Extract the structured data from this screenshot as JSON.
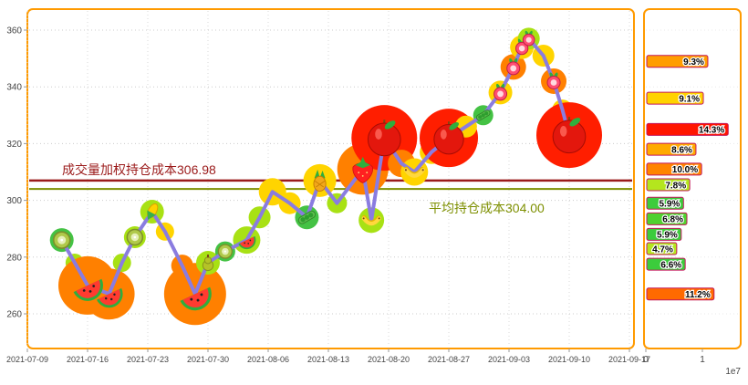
{
  "chart_data": {
    "type": "line",
    "title": "",
    "description": "Stock price line with fruit markers, volume-weighted bubbles, and chip (holding cost) distribution side panel",
    "main": {
      "x_tick_labels": [
        "2021-07-09",
        "2021-07-16",
        "2021-07-23",
        "2021-07-30",
        "2021-08-06",
        "2021-08-13",
        "2021-08-20",
        "2021-08-27",
        "2021-09-03",
        "2021-09-10",
        "2021-09-17"
      ],
      "x_tick_days": [
        0,
        7,
        14,
        21,
        28,
        35,
        42,
        49,
        56,
        63,
        70
      ],
      "y_ticks": [
        260,
        280,
        300,
        320,
        340,
        360
      ],
      "ylim": [
        248,
        368
      ],
      "grid": true,
      "line_color": "#8a7ce0",
      "panel_border_color": "#ff9a00",
      "hlines": [
        {
          "label": "成交量加权持仓成本306.98",
          "value": 306.98,
          "color": "#9b1b1b"
        },
        {
          "label": "平均持仓成本304.00",
          "value": 304.0,
          "color": "#7d8f00"
        }
      ],
      "points": [
        {
          "day": 4,
          "price": 286,
          "marker": "kiwi",
          "ms": 18,
          "bubble": {
            "r": 13,
            "color": "#44c244"
          }
        },
        {
          "day": 5.5,
          "price": 278,
          "bubble": {
            "r": 10,
            "color": "#a8e114"
          }
        },
        {
          "day": 7,
          "price": 270,
          "marker": "watermelon",
          "ms": 34,
          "bubble": {
            "r": 32,
            "color": "#ff8000"
          }
        },
        {
          "day": 9.5,
          "price": 267,
          "marker": "watermelon",
          "ms": 30,
          "bubble": {
            "r": 28,
            "color": "#ff8000"
          }
        },
        {
          "day": 11,
          "price": 278,
          "bubble": {
            "r": 10,
            "color": "#a8e114"
          }
        },
        {
          "day": 12.5,
          "price": 287,
          "marker": "kiwi",
          "ms": 17,
          "bubble": {
            "r": 12,
            "color": "#a8e114"
          }
        },
        {
          "day": 14.5,
          "price": 296,
          "marker": "corn",
          "ms": 20,
          "bubble": {
            "r": 13,
            "color": "#a8e114"
          }
        },
        {
          "day": 16,
          "price": 289,
          "bubble": {
            "r": 10,
            "color": "#ffd400"
          }
        },
        {
          "day": 18,
          "price": 277,
          "bubble": {
            "r": 12,
            "color": "#ff8000"
          }
        },
        {
          "day": 19.5,
          "price": 267,
          "marker": "watermelon",
          "ms": 36,
          "bubble": {
            "r": 34,
            "color": "#ff8000"
          }
        },
        {
          "day": 21,
          "price": 278,
          "marker": "pear",
          "ms": 19,
          "bubble": {
            "r": 13,
            "color": "#a8e114"
          }
        },
        {
          "day": 23,
          "price": 282,
          "marker": "kiwi",
          "ms": 15,
          "bubble": {
            "r": 11,
            "color": "#44c244"
          }
        },
        {
          "day": 25.5,
          "price": 286,
          "marker": "watermelon",
          "ms": 20,
          "bubble": {
            "r": 15,
            "color": "#a8e114"
          }
        },
        {
          "day": 27,
          "price": 294,
          "bubble": {
            "r": 12,
            "color": "#a8e114"
          }
        },
        {
          "day": 28.5,
          "price": 303,
          "bubble": {
            "r": 15,
            "color": "#ffd400"
          }
        },
        {
          "day": 30.5,
          "price": 299,
          "bubble": {
            "r": 12,
            "color": "#ffd400"
          }
        },
        {
          "day": 32.5,
          "price": 294,
          "marker": "peas",
          "ms": 20,
          "bubble": {
            "r": 13,
            "color": "#44c244"
          }
        },
        {
          "day": 34,
          "price": 307,
          "marker": "pineapple",
          "ms": 24,
          "bubble": {
            "r": 18,
            "color": "#ffd400"
          }
        },
        {
          "day": 36,
          "price": 299,
          "bubble": {
            "r": 11,
            "color": "#a8e114"
          }
        },
        {
          "day": 39,
          "price": 311,
          "marker": "strawberry",
          "ms": 30,
          "bubble": {
            "r": 28,
            "color": "#ff8000"
          }
        },
        {
          "day": 40,
          "price": 293,
          "marker": "banana",
          "ms": 20,
          "bubble": {
            "r": 14,
            "color": "#a8e114"
          }
        },
        {
          "day": 41.5,
          "price": 322,
          "marker": "apple",
          "ms": 42,
          "bubble": {
            "r": 36,
            "color": "#ff1e00"
          }
        },
        {
          "day": 43.5,
          "price": 313,
          "bubble": {
            "r": 15,
            "color": "#ff8000"
          }
        },
        {
          "day": 45,
          "price": 310,
          "marker": "banana",
          "ms": 22,
          "bubble": {
            "r": 15,
            "color": "#ffd400"
          }
        },
        {
          "day": 47,
          "price": 317,
          "bubble": {
            "r": 13,
            "color": "#ffd400"
          }
        },
        {
          "day": 49,
          "price": 322,
          "marker": "apple",
          "ms": 38,
          "bubble": {
            "r": 32,
            "color": "#ff1e00"
          }
        },
        {
          "day": 51,
          "price": 326,
          "bubble": {
            "r": 12,
            "color": "#ffd400"
          }
        },
        {
          "day": 53,
          "price": 330,
          "marker": "peas",
          "ms": 16,
          "bubble": {
            "r": 11,
            "color": "#44c244"
          }
        },
        {
          "day": 55,
          "price": 338,
          "marker": "radish",
          "ms": 20,
          "bubble": {
            "r": 13,
            "color": "#ffd400"
          }
        },
        {
          "day": 56.5,
          "price": 347,
          "marker": "radish",
          "ms": 20,
          "bubble": {
            "r": 14,
            "color": "#ff8000"
          }
        },
        {
          "day": 57.5,
          "price": 354,
          "marker": "radish",
          "ms": 19,
          "bubble": {
            "r": 13,
            "color": "#ffd400"
          }
        },
        {
          "day": 58.3,
          "price": 357,
          "marker": "radish",
          "ms": 18,
          "bubble": {
            "r": 12,
            "color": "#a8e114"
          }
        },
        {
          "day": 60,
          "price": 351,
          "bubble": {
            "r": 12,
            "color": "#ffd400"
          }
        },
        {
          "day": 61.2,
          "price": 342,
          "marker": "radish",
          "ms": 20,
          "bubble": {
            "r": 14,
            "color": "#ff8000"
          }
        },
        {
          "day": 62.2,
          "price": 332,
          "bubble": {
            "r": 11,
            "color": "#ffd400"
          }
        },
        {
          "day": 63,
          "price": 323,
          "marker": "apple",
          "ms": 42,
          "bubble": {
            "r": 36,
            "color": "#ff1e00"
          }
        }
      ]
    },
    "volume_panel": {
      "x_tick_labels": [
        "0",
        "1"
      ],
      "scale_label": "1e7",
      "panel_border_color": "#ff9a00",
      "bars": [
        {
          "price": 349,
          "pct": "9.3%",
          "value": 1.08,
          "color": "#ff9d00"
        },
        {
          "price": 336,
          "pct": "9.1%",
          "value": 1.0,
          "color": "#ffd300"
        },
        {
          "price": 325,
          "pct": "14.3%",
          "value": 1.44,
          "color": "#ff1500"
        },
        {
          "price": 318,
          "pct": "8.6%",
          "value": 0.87,
          "color": "#ffaa00"
        },
        {
          "price": 311,
          "pct": "10.0%",
          "value": 0.97,
          "color": "#ff8400"
        },
        {
          "price": 305.5,
          "pct": "7.8%",
          "value": 0.76,
          "color": "#b4e61e"
        },
        {
          "price": 299,
          "pct": "5.9%",
          "value": 0.65,
          "color": "#3ccc3c"
        },
        {
          "price": 293.5,
          "pct": "6.8%",
          "value": 0.71,
          "color": "#4fd12f"
        },
        {
          "price": 288,
          "pct": "5.9%",
          "value": 0.61,
          "color": "#3ccc3c"
        },
        {
          "price": 283,
          "pct": "4.7%",
          "value": 0.53,
          "color": "#b4e61e"
        },
        {
          "price": 277.5,
          "pct": "6.6%",
          "value": 0.68,
          "color": "#3ccc3c"
        },
        {
          "price": 267,
          "pct": "11.2%",
          "value": 1.19,
          "color": "#ff6a00"
        }
      ]
    }
  }
}
